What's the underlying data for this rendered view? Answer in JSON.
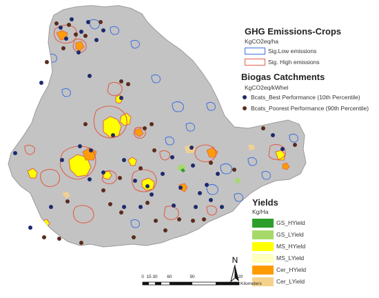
{
  "ghg_legend": {
    "title": "GHG Emissions-Crops",
    "unit": "KgCO2eq/ha",
    "items": [
      {
        "label": "Sig.Low emissions",
        "color": "#3b6fe0"
      },
      {
        "label": "Sig. High emissions",
        "color": "#e0604a"
      }
    ]
  },
  "biogas_legend": {
    "title": "Biogas Catchments",
    "unit": "KgCO2eq/kWhel",
    "items": [
      {
        "label": "Bcats_Best Performance (10th Percentile)",
        "color": "#1d2a6b"
      },
      {
        "label": "Bcats_Poorest Performance (90th Percentile)",
        "color": "#5a2c1e"
      }
    ]
  },
  "yields_legend": {
    "title": "Yields",
    "unit": "Kg/Ha",
    "items": [
      {
        "label": "GS_HYield",
        "color": "#2e9e2a"
      },
      {
        "label": "GS_LYield",
        "color": "#a6d96a"
      },
      {
        "label": "MS_HYield",
        "color": "#ffff00"
      },
      {
        "label": "MS_LYield",
        "color": "#ffffbe"
      },
      {
        "label": "Cer_HYield",
        "color": "#ff9a00"
      },
      {
        "label": "Cer_LYield",
        "color": "#f5d28c"
      }
    ]
  },
  "north_arrow": {
    "label": "N"
  },
  "scale": {
    "ticks": [
      "0",
      "15",
      "30",
      "60",
      "90",
      "120"
    ],
    "unit": "Kilometers"
  }
}
